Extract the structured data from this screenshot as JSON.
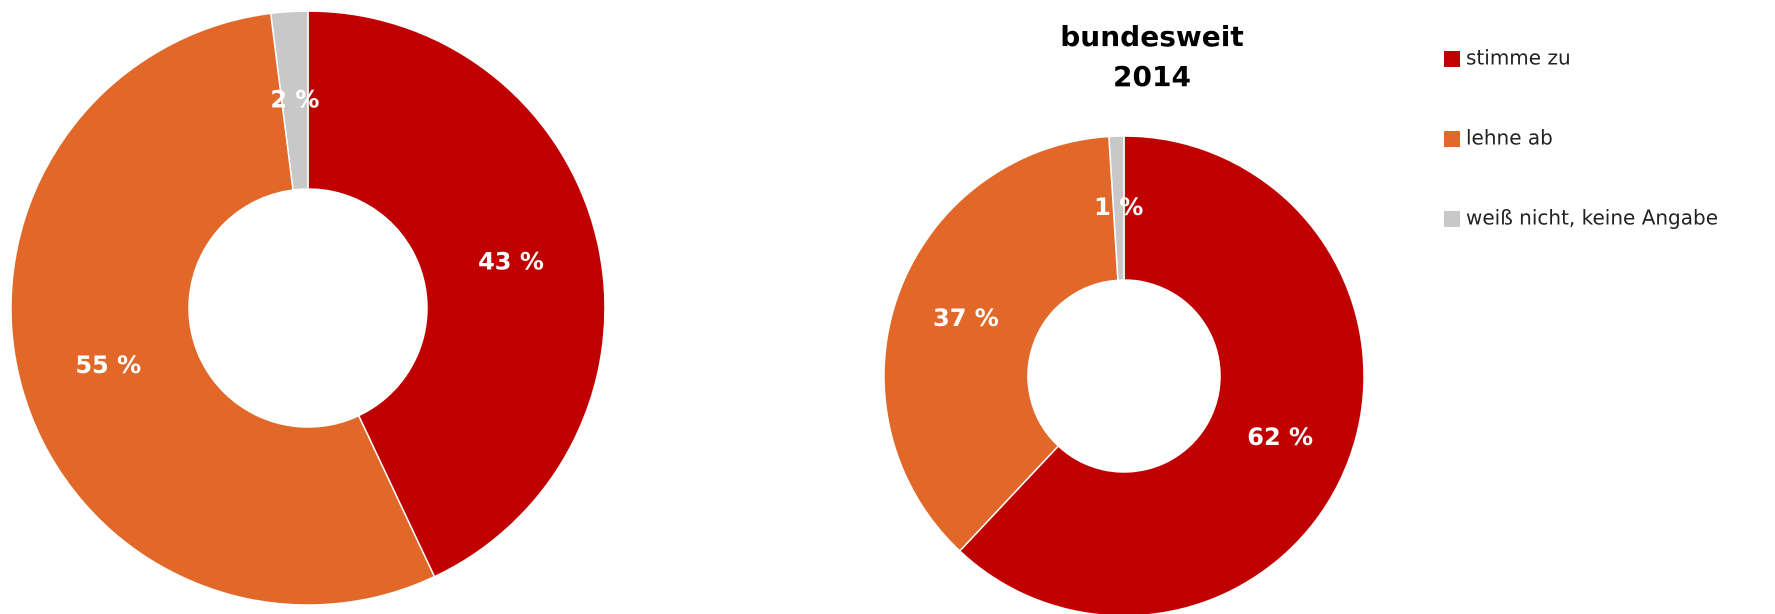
{
  "chart_data": [
    {
      "type": "donut",
      "values": [
        43,
        55,
        2
      ],
      "value_labels": [
        "43 %",
        "55 %",
        "2 %"
      ],
      "colors": [
        "#c00000",
        "#e2682a",
        "#c8c8c8"
      ]
    },
    {
      "type": "donut",
      "title": [
        "bundesweit",
        "2014"
      ],
      "categories": [
        "stimme zu",
        "lehne ab",
        "weiß nicht, keine Angabe"
      ],
      "values": [
        62,
        37,
        1
      ],
      "value_labels": [
        "62 %",
        "37 %",
        "1 %"
      ],
      "colors": [
        "#c00000",
        "#e2682a",
        "#c8c8c8"
      ]
    }
  ]
}
